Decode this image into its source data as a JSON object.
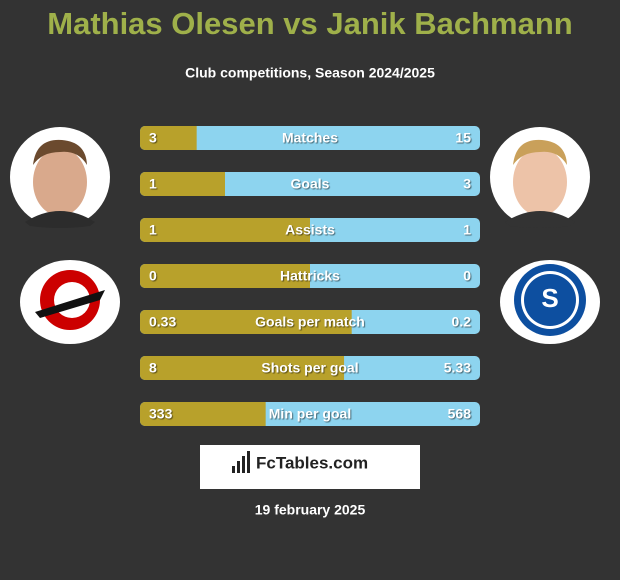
{
  "header": {
    "title": "Mathias Olesen vs Janik Bachmann",
    "subtitle": "Club competitions, Season 2024/2025"
  },
  "stats": [
    {
      "label": "Matches",
      "left": 3,
      "right": 15
    },
    {
      "label": "Goals",
      "left": 1,
      "right": 3
    },
    {
      "label": "Assists",
      "left": 1,
      "right": 1
    },
    {
      "label": "Hattricks",
      "left": 0,
      "right": 0
    },
    {
      "label": "Goals per match",
      "left": 0.33,
      "right": 0.2
    },
    {
      "label": "Shots per goal",
      "left": 8,
      "right": 5.33
    },
    {
      "label": "Min per goal",
      "left": 333,
      "right": 568
    }
  ],
  "colors": {
    "left": "#b8a12b",
    "right": "#8dd4ef"
  },
  "logo": "FcTables.com",
  "date": "19 february 2025"
}
